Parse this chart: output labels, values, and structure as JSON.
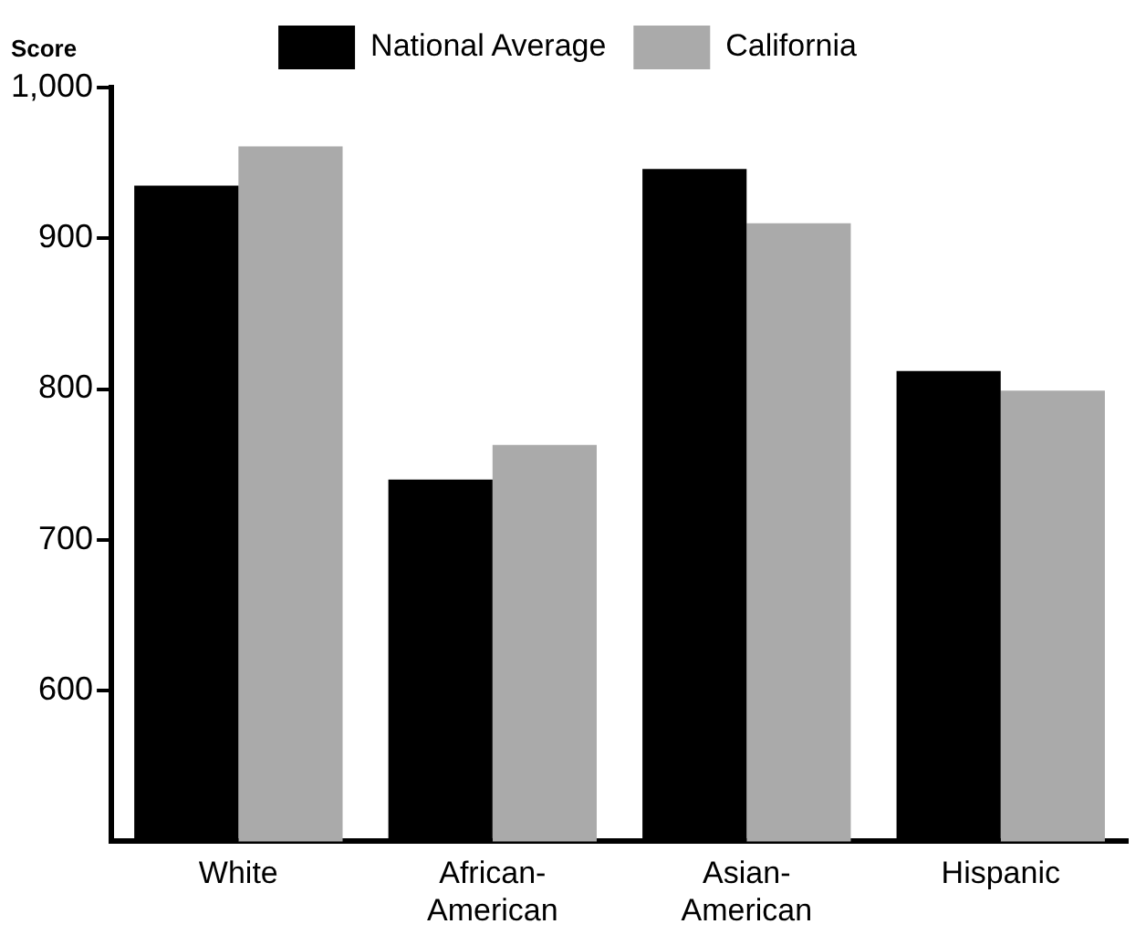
{
  "chart_data": {
    "type": "bar",
    "ylabel": "Score",
    "categories": [
      "White",
      "African-American",
      "Asian-American",
      "Hispanic"
    ],
    "series": [
      {
        "name": "National Average",
        "color": "#000000",
        "values": [
          935,
          740,
          946,
          812
        ]
      },
      {
        "name": "California",
        "color": "#aaaaaa",
        "values": [
          961,
          763,
          910,
          799
        ]
      }
    ],
    "ylim": [
      500,
      1000
    ],
    "yticks": [
      {
        "value": 1000,
        "label": "1,000"
      },
      900,
      800,
      700,
      600
    ],
    "grid": false,
    "legend": "top"
  }
}
